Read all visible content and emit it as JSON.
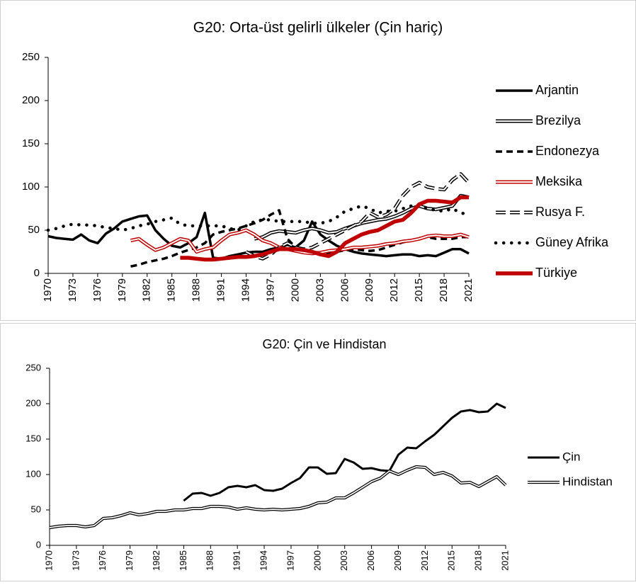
{
  "chart_data": [
    {
      "type": "line",
      "title": "G20: Orta-üst gelirli ülkeler (Çin hariç)",
      "x": [
        1970,
        1971,
        1972,
        1973,
        1974,
        1975,
        1976,
        1977,
        1978,
        1979,
        1980,
        1981,
        1982,
        1983,
        1984,
        1985,
        1986,
        1987,
        1988,
        1989,
        1990,
        1991,
        1992,
        1993,
        1994,
        1995,
        1996,
        1997,
        1998,
        1999,
        2000,
        2001,
        2002,
        2003,
        2004,
        2005,
        2006,
        2007,
        2008,
        2009,
        2010,
        2011,
        2012,
        2013,
        2014,
        2015,
        2016,
        2017,
        2018,
        2019,
        2020,
        2021
      ],
      "xlim": [
        1970,
        2021
      ],
      "xticks": [
        1970,
        1973,
        1976,
        1979,
        1982,
        1985,
        1988,
        1991,
        1994,
        1997,
        2000,
        2003,
        2006,
        2009,
        2012,
        2015,
        2018,
        2021
      ],
      "ylim": [
        0,
        250
      ],
      "yticks": [
        0,
        50,
        100,
        150,
        200,
        250
      ],
      "legend": "right",
      "series": [
        {
          "name": "Arjantin",
          "color": "#000000",
          "style": "solid",
          "values": [
            43,
            41,
            40,
            39,
            45,
            38,
            35,
            46,
            52,
            60,
            63,
            66,
            67,
            50,
            40,
            32,
            30,
            35,
            42,
            70,
            18,
            17,
            20,
            22,
            24,
            25,
            25,
            28,
            30,
            33,
            30,
            38,
            60,
            45,
            38,
            32,
            28,
            25,
            23,
            22,
            21,
            20,
            21,
            22,
            22,
            20,
            21,
            20,
            24,
            28,
            28,
            23
          ]
        },
        {
          "name": "Brezilya",
          "color": "#000000",
          "style": "double",
          "values": [
            null,
            null,
            null,
            null,
            null,
            null,
            null,
            null,
            null,
            null,
            null,
            null,
            null,
            null,
            null,
            null,
            null,
            null,
            null,
            null,
            null,
            null,
            null,
            null,
            null,
            40,
            42,
            47,
            49,
            48,
            47,
            50,
            52,
            50,
            47,
            48,
            52,
            55,
            58,
            60,
            62,
            63,
            66,
            70,
            75,
            78,
            75,
            74,
            76,
            78,
            90,
            88
          ]
        },
        {
          "name": "Endonezya",
          "color": "#000000",
          "style": "dashed",
          "values": [
            null,
            null,
            null,
            null,
            null,
            null,
            null,
            null,
            null,
            null,
            8,
            10,
            13,
            15,
            17,
            20,
            24,
            27,
            30,
            35,
            45,
            48,
            50,
            52,
            55,
            58,
            62,
            68,
            73,
            40,
            30,
            28,
            25,
            24,
            24,
            25,
            27,
            28,
            27,
            26,
            27,
            30,
            33,
            36,
            38,
            41,
            42,
            40,
            40,
            40,
            42,
            42
          ]
        },
        {
          "name": "Meksika",
          "color": "#c00000",
          "style": "double",
          "values": [
            null,
            null,
            null,
            null,
            null,
            null,
            null,
            null,
            null,
            null,
            38,
            40,
            33,
            27,
            30,
            35,
            40,
            38,
            25,
            28,
            30,
            38,
            45,
            47,
            50,
            45,
            38,
            35,
            30,
            28,
            26,
            24,
            23,
            24,
            26,
            27,
            28,
            30,
            30,
            31,
            32,
            34,
            35,
            37,
            38,
            40,
            43,
            44,
            43,
            43,
            45,
            42
          ]
        },
        {
          "name": "Rusya F.",
          "color": "#000000",
          "style": "double-dashed",
          "values": [
            null,
            null,
            null,
            null,
            null,
            null,
            null,
            null,
            null,
            null,
            null,
            null,
            null,
            null,
            null,
            null,
            null,
            null,
            null,
            null,
            null,
            null,
            null,
            null,
            25,
            20,
            17,
            22,
            30,
            35,
            30,
            28,
            30,
            35,
            40,
            45,
            50,
            55,
            60,
            70,
            65,
            68,
            75,
            90,
            100,
            105,
            100,
            98,
            97,
            108,
            115,
            105
          ]
        },
        {
          "name": "Güney Afrika",
          "color": "#000000",
          "style": "dotted",
          "values": [
            50,
            52,
            55,
            57,
            56,
            56,
            55,
            53,
            52,
            50,
            52,
            55,
            57,
            60,
            62,
            64,
            57,
            55,
            55,
            55,
            55,
            55,
            52,
            50,
            55,
            60,
            62,
            62,
            60,
            60,
            60,
            60,
            58,
            58,
            60,
            65,
            72,
            75,
            78,
            75,
            70,
            72,
            72,
            75,
            78,
            80,
            75,
            73,
            72,
            75,
            70,
            68
          ]
        },
        {
          "name": "Türkiye",
          "color": "#c00000",
          "style": "thick",
          "values": [
            null,
            null,
            null,
            null,
            null,
            null,
            null,
            null,
            null,
            null,
            null,
            null,
            null,
            null,
            null,
            null,
            18,
            18,
            17,
            16,
            16,
            17,
            18,
            19,
            19,
            20,
            22,
            25,
            28,
            28,
            28,
            27,
            25,
            22,
            20,
            25,
            35,
            40,
            45,
            48,
            50,
            55,
            60,
            62,
            70,
            80,
            84,
            84,
            83,
            82,
            88,
            88
          ]
        }
      ]
    },
    {
      "type": "line",
      "title": "G20: Çin ve Hindistan",
      "x": [
        1970,
        1971,
        1972,
        1973,
        1974,
        1975,
        1976,
        1977,
        1978,
        1979,
        1980,
        1981,
        1982,
        1983,
        1984,
        1985,
        1986,
        1987,
        1988,
        1989,
        1990,
        1991,
        1992,
        1993,
        1994,
        1995,
        1996,
        1997,
        1998,
        1999,
        2000,
        2001,
        2002,
        2003,
        2004,
        2005,
        2006,
        2007,
        2008,
        2009,
        2010,
        2011,
        2012,
        2013,
        2014,
        2015,
        2016,
        2017,
        2018,
        2019,
        2020,
        2021
      ],
      "xlim": [
        1970,
        2021
      ],
      "xticks": [
        1970,
        1973,
        1976,
        1979,
        1982,
        1985,
        1988,
        1991,
        1994,
        1997,
        2000,
        2003,
        2006,
        2009,
        2012,
        2015,
        2018,
        2021
      ],
      "ylim": [
        0,
        250
      ],
      "yticks": [
        0,
        50,
        100,
        150,
        200,
        250
      ],
      "legend": "right",
      "series": [
        {
          "name": "Çin",
          "color": "#000000",
          "style": "solid",
          "values": [
            null,
            null,
            null,
            null,
            null,
            null,
            null,
            null,
            null,
            null,
            null,
            null,
            null,
            null,
            null,
            63,
            73,
            74,
            70,
            74,
            82,
            84,
            82,
            85,
            78,
            77,
            80,
            88,
            95,
            110,
            110,
            101,
            102,
            122,
            117,
            108,
            109,
            106,
            105,
            128,
            138,
            137,
            147,
            156,
            168,
            180,
            189,
            191,
            188,
            189,
            200,
            194
          ]
        },
        {
          "name": "Hindistan",
          "color": "#000000",
          "style": "double",
          "values": [
            25,
            27,
            28,
            28,
            26,
            28,
            38,
            39,
            42,
            46,
            43,
            45,
            48,
            48,
            50,
            50,
            52,
            52,
            55,
            55,
            54,
            51,
            53,
            51,
            50,
            51,
            50,
            51,
            52,
            55,
            60,
            61,
            67,
            67,
            74,
            82,
            90,
            95,
            105,
            100,
            106,
            111,
            110,
            100,
            103,
            98,
            88,
            89,
            83,
            90,
            97,
            85
          ]
        }
      ]
    }
  ]
}
